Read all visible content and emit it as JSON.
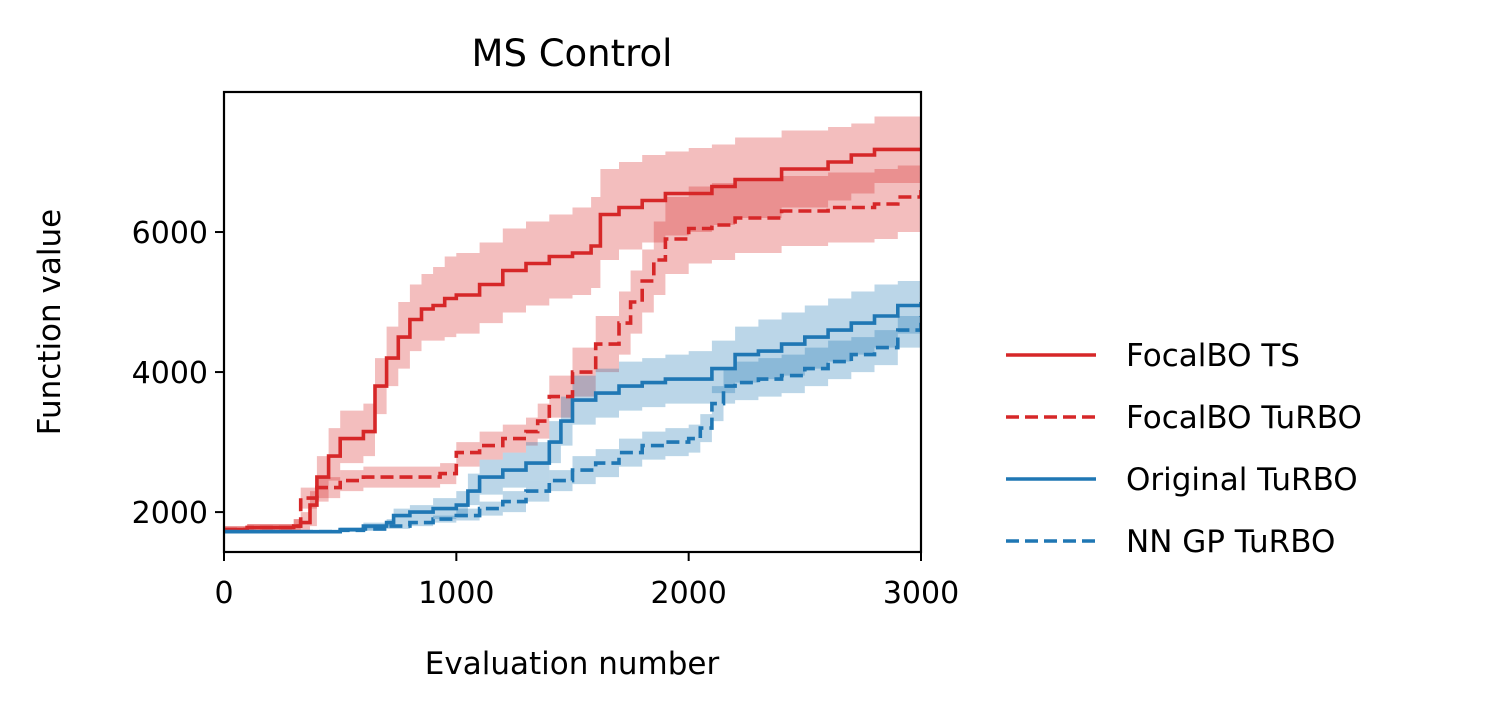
{
  "chart_data": {
    "type": "line",
    "title": "MS Control",
    "xlabel": "Evaluation number",
    "ylabel": "Function value",
    "xlim": [
      0,
      3000
    ],
    "ylim": [
      1430,
      8000
    ],
    "xticks": [
      0,
      1000,
      2000,
      3000
    ],
    "yticks": [
      2000,
      4000,
      6000
    ],
    "xtick_labels": [
      "0",
      "1000",
      "2000",
      "3000"
    ],
    "ytick_labels": [
      "2000",
      "4000",
      "6000"
    ],
    "grid": false,
    "legend_position": "outside-right",
    "series": [
      {
        "name": "FocalBO TS",
        "color": "#d62728",
        "style": "solid",
        "x": [
          0,
          100,
          300,
          330,
          370,
          400,
          450,
          500,
          600,
          650,
          700,
          750,
          800,
          850,
          900,
          950,
          1000,
          1100,
          1200,
          1300,
          1400,
          1500,
          1580,
          1620,
          1700,
          1800,
          1900,
          2000,
          2100,
          2200,
          2400,
          2600,
          2700,
          2800,
          3000
        ],
        "y": [
          1750,
          1780,
          1800,
          1850,
          2100,
          2500,
          2800,
          3050,
          3150,
          3800,
          4200,
          4500,
          4750,
          4900,
          4950,
          5050,
          5100,
          5250,
          5450,
          5550,
          5650,
          5700,
          5800,
          6250,
          6350,
          6450,
          6550,
          6550,
          6650,
          6750,
          6900,
          7000,
          7100,
          7180,
          7180
        ],
        "upper": [
          1800,
          1830,
          1900,
          2000,
          2300,
          2800,
          3200,
          3450,
          3550,
          4200,
          4650,
          5000,
          5250,
          5400,
          5500,
          5650,
          5700,
          5850,
          6050,
          6150,
          6250,
          6350,
          6500,
          6900,
          7000,
          7100,
          7150,
          7200,
          7250,
          7350,
          7450,
          7500,
          7550,
          7650,
          7650
        ],
        "lower": [
          1700,
          1720,
          1720,
          1740,
          1800,
          2150,
          2450,
          2700,
          2800,
          3400,
          3800,
          4050,
          4300,
          4450,
          4450,
          4500,
          4550,
          4700,
          4850,
          4950,
          5050,
          5100,
          5200,
          5600,
          5750,
          5850,
          5950,
          6000,
          6100,
          6200,
          6350,
          6450,
          6550,
          6700,
          6700
        ]
      },
      {
        "name": "FocalBO TuRBO",
        "color": "#d62728",
        "style": "dashed",
        "x": [
          0,
          100,
          300,
          330,
          400,
          500,
          600,
          700,
          800,
          930,
          1000,
          1100,
          1200,
          1300,
          1350,
          1400,
          1500,
          1600,
          1700,
          1750,
          1800,
          1850,
          1900,
          2000,
          2100,
          2200,
          2400,
          2600,
          2800,
          2900,
          3000
        ],
        "y": [
          1750,
          1780,
          1800,
          2200,
          2350,
          2450,
          2500,
          2500,
          2500,
          2550,
          2850,
          2950,
          3050,
          3150,
          3300,
          3650,
          4000,
          4400,
          4700,
          5000,
          5300,
          5600,
          5900,
          6050,
          6100,
          6200,
          6300,
          6350,
          6400,
          6500,
          6600
        ],
        "upper": [
          1800,
          1830,
          1900,
          2350,
          2500,
          2600,
          2650,
          2650,
          2650,
          2700,
          3000,
          3150,
          3250,
          3350,
          3550,
          3950,
          4350,
          4800,
          5150,
          5450,
          5750,
          6150,
          6500,
          6650,
          6700,
          6750,
          6800,
          6850,
          6900,
          6950,
          7050
        ],
        "lower": [
          1700,
          1720,
          1720,
          2050,
          2200,
          2300,
          2350,
          2350,
          2350,
          2400,
          2650,
          2750,
          2850,
          2950,
          3050,
          3350,
          3650,
          4000,
          4250,
          4550,
          4850,
          5100,
          5400,
          5550,
          5600,
          5700,
          5800,
          5850,
          5900,
          6000,
          6100
        ]
      },
      {
        "name": "Original TuRBO",
        "color": "#1f77b4",
        "style": "solid",
        "x": [
          0,
          300,
          500,
          600,
          700,
          730,
          800,
          900,
          1000,
          1050,
          1100,
          1200,
          1300,
          1400,
          1450,
          1500,
          1600,
          1700,
          1800,
          1900,
          2000,
          2100,
          2200,
          2300,
          2400,
          2500,
          2600,
          2700,
          2800,
          2900,
          3000
        ],
        "y": [
          1720,
          1720,
          1750,
          1800,
          1850,
          1950,
          2000,
          2050,
          2100,
          2300,
          2500,
          2600,
          2700,
          3000,
          3300,
          3600,
          3700,
          3800,
          3850,
          3900,
          3900,
          4050,
          4250,
          4300,
          4400,
          4500,
          4600,
          4700,
          4800,
          4950,
          5000
        ],
        "upper": [
          1740,
          1740,
          1780,
          1850,
          1900,
          2050,
          2100,
          2200,
          2300,
          2550,
          2750,
          2850,
          3000,
          3300,
          3650,
          3950,
          4050,
          4150,
          4200,
          4250,
          4300,
          4450,
          4650,
          4750,
          4850,
          4950,
          5050,
          5150,
          5250,
          5300,
          5400
        ],
        "lower": [
          1700,
          1700,
          1720,
          1750,
          1800,
          1850,
          1900,
          1900,
          1950,
          2100,
          2250,
          2350,
          2450,
          2700,
          2950,
          3250,
          3350,
          3450,
          3500,
          3550,
          3550,
          3700,
          3850,
          3900,
          3950,
          4050,
          4150,
          4250,
          4350,
          4550,
          4650
        ]
      },
      {
        "name": "NN GP TuRBO",
        "color": "#1f77b4",
        "style": "dashed",
        "x": [
          0,
          300,
          500,
          600,
          700,
          800,
          900,
          1000,
          1100,
          1200,
          1300,
          1400,
          1500,
          1600,
          1700,
          1800,
          1900,
          2000,
          2050,
          2100,
          2150,
          2200,
          2300,
          2400,
          2500,
          2600,
          2700,
          2800,
          2900,
          3000
        ],
        "y": [
          1720,
          1720,
          1740,
          1760,
          1800,
          1850,
          1900,
          1950,
          2050,
          2150,
          2300,
          2450,
          2600,
          2700,
          2850,
          2950,
          3000,
          3050,
          3200,
          3550,
          3800,
          3850,
          3900,
          3950,
          4050,
          4150,
          4250,
          4350,
          4600,
          4800
        ],
        "upper": [
          1740,
          1740,
          1770,
          1800,
          1850,
          1900,
          1950,
          2050,
          2150,
          2300,
          2450,
          2600,
          2800,
          2900,
          3050,
          3150,
          3200,
          3250,
          3400,
          3800,
          4050,
          4150,
          4200,
          4250,
          4350,
          4450,
          4500,
          4600,
          4800,
          5000
        ],
        "lower": [
          1700,
          1700,
          1720,
          1730,
          1760,
          1800,
          1850,
          1880,
          1950,
          2000,
          2150,
          2300,
          2400,
          2500,
          2650,
          2750,
          2800,
          2850,
          3000,
          3300,
          3550,
          3600,
          3650,
          3700,
          3800,
          3900,
          4000,
          4100,
          4350,
          4550
        ]
      }
    ]
  }
}
